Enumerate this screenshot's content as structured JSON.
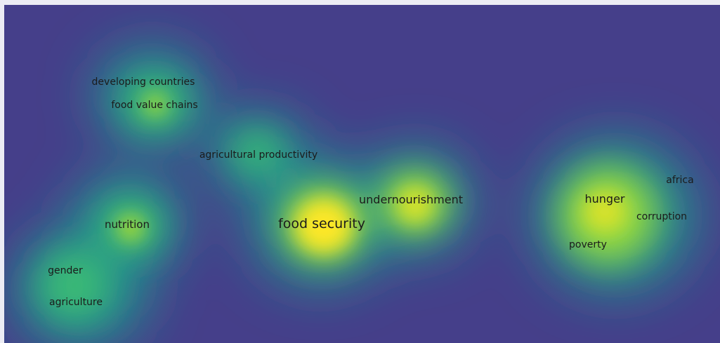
{
  "view": {
    "colors": {
      "background": "#453f8a",
      "ramp": [
        "#453f8a",
        "#2e6f8e",
        "#21918c",
        "#3aba76",
        "#90d743",
        "#fde725"
      ],
      "text": "#1b1b1b"
    }
  },
  "terms": [
    {
      "id": "developing-countries",
      "label": "developing countries",
      "weight": 0.55
    },
    {
      "id": "food-value-chains",
      "label": "food value chains",
      "weight": 0.55
    },
    {
      "id": "agricultural-productivity",
      "label": "agricultural productivity",
      "weight": 0.5
    },
    {
      "id": "undernourishment",
      "label": "undernourishment",
      "weight": 0.8
    },
    {
      "id": "food-security",
      "label": "food security",
      "weight": 1.0
    },
    {
      "id": "hunger",
      "label": "hunger",
      "weight": 0.85
    },
    {
      "id": "africa",
      "label": "africa",
      "weight": 0.45
    },
    {
      "id": "corruption",
      "label": "corruption",
      "weight": 0.5
    },
    {
      "id": "poverty",
      "label": "poverty",
      "weight": 0.5
    },
    {
      "id": "nutrition",
      "label": "nutrition",
      "weight": 0.65
    },
    {
      "id": "gender",
      "label": "gender",
      "weight": 0.5
    },
    {
      "id": "agriculture",
      "label": "agriculture",
      "weight": 0.55
    }
  ]
}
